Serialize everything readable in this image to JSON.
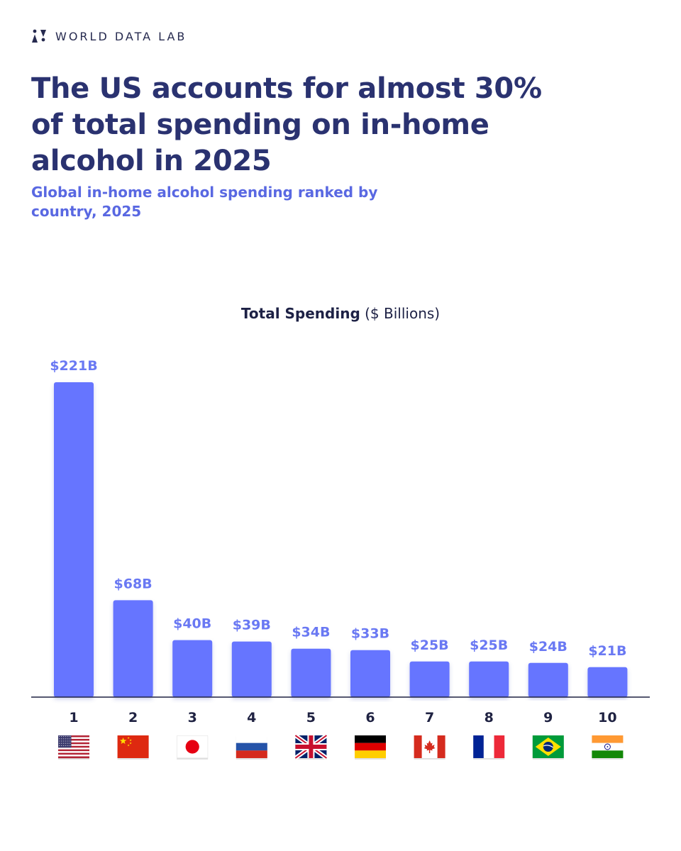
{
  "brand": {
    "name": "WORLD DATA LAB",
    "logo_icon": "world-data-lab-logo-icon"
  },
  "headline": "The US accounts for almost 30% of total spending on in-home alcohol in 2025",
  "subtitle": "Global in-home alcohol spending ranked by country, 2025",
  "colors": {
    "bar": "#6675ff",
    "value_label": "#6a79f3",
    "title": "#2a3270",
    "subtitle": "#5968e2",
    "axis": "#1f2242"
  },
  "chart_data": {
    "type": "bar",
    "title_bold": "Total Spending",
    "title_unit": "($ Billions)",
    "categories": [
      "1",
      "2",
      "3",
      "4",
      "5",
      "6",
      "7",
      "8",
      "9",
      "10"
    ],
    "values": [
      221,
      68,
      40,
      39,
      34,
      33,
      25,
      25,
      24,
      21
    ],
    "value_labels": [
      "$221B",
      "$68B",
      "$40B",
      "$39B",
      "$34B",
      "$33B",
      "$25B",
      "$25B",
      "$24B",
      "$21B"
    ],
    "flags": [
      "us-flag-icon",
      "china-flag-icon",
      "japan-flag-icon",
      "russia-flag-icon",
      "uk-flag-icon",
      "germany-flag-icon",
      "canada-flag-icon",
      "france-flag-icon",
      "brazil-flag-icon",
      "india-flag-icon"
    ],
    "ylim": [
      0,
      221
    ],
    "xlabel": "",
    "ylabel": ""
  }
}
